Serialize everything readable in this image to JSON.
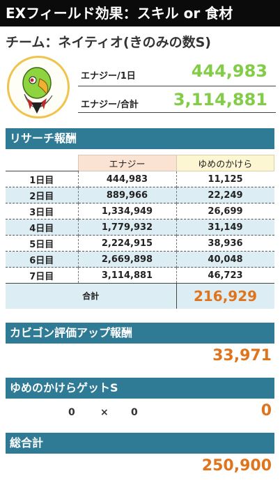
{
  "header": {
    "title": "EXフィールド効果：スキル or 食材"
  },
  "team": {
    "label": "チーム：ネイティオ(きのみの数S)"
  },
  "avatar": {
    "icon": "xatu-pokemon-icon",
    "colors": {
      "body": "#8dd43f",
      "beak": "#f0b030",
      "ring": "#f0c34e"
    }
  },
  "stats": {
    "daily_label": "エナジー/1日",
    "daily_value": "444,983",
    "total_label": "エナジー/合計",
    "total_value": "3,114,881"
  },
  "research": {
    "title": "リサーチ報酬",
    "col_energy": "エナジー",
    "col_dream": "ゆめのかけら",
    "rows": [
      {
        "day": "1日目",
        "energy": "444,983",
        "dream": "11,125"
      },
      {
        "day": "2日目",
        "energy": "889,966",
        "dream": "22,249"
      },
      {
        "day": "3日目",
        "energy": "1,334,949",
        "dream": "26,699"
      },
      {
        "day": "4日目",
        "energy": "1,779,932",
        "dream": "31,149"
      },
      {
        "day": "5日目",
        "energy": "2,224,915",
        "dream": "38,936"
      },
      {
        "day": "6日目",
        "energy": "2,669,898",
        "dream": "40,048"
      },
      {
        "day": "7日目",
        "energy": "3,114,881",
        "dream": "46,723"
      }
    ],
    "total_label": "合計",
    "total_value": "216,929"
  },
  "snorlax": {
    "title": "カビゴン評価アップ報酬",
    "value": "33,971"
  },
  "dream_get": {
    "title": "ゆめのかけらゲットS",
    "left": "0",
    "op": "×",
    "right": "0",
    "value": "0"
  },
  "grand_total": {
    "title": "総合計",
    "value": "250,900"
  },
  "colors": {
    "header_bg": "#0b0b0b",
    "section_bg": "#2f7b96",
    "green": "#82cc48",
    "orange": "#e0741c",
    "row_alt": "#dcedf3"
  }
}
